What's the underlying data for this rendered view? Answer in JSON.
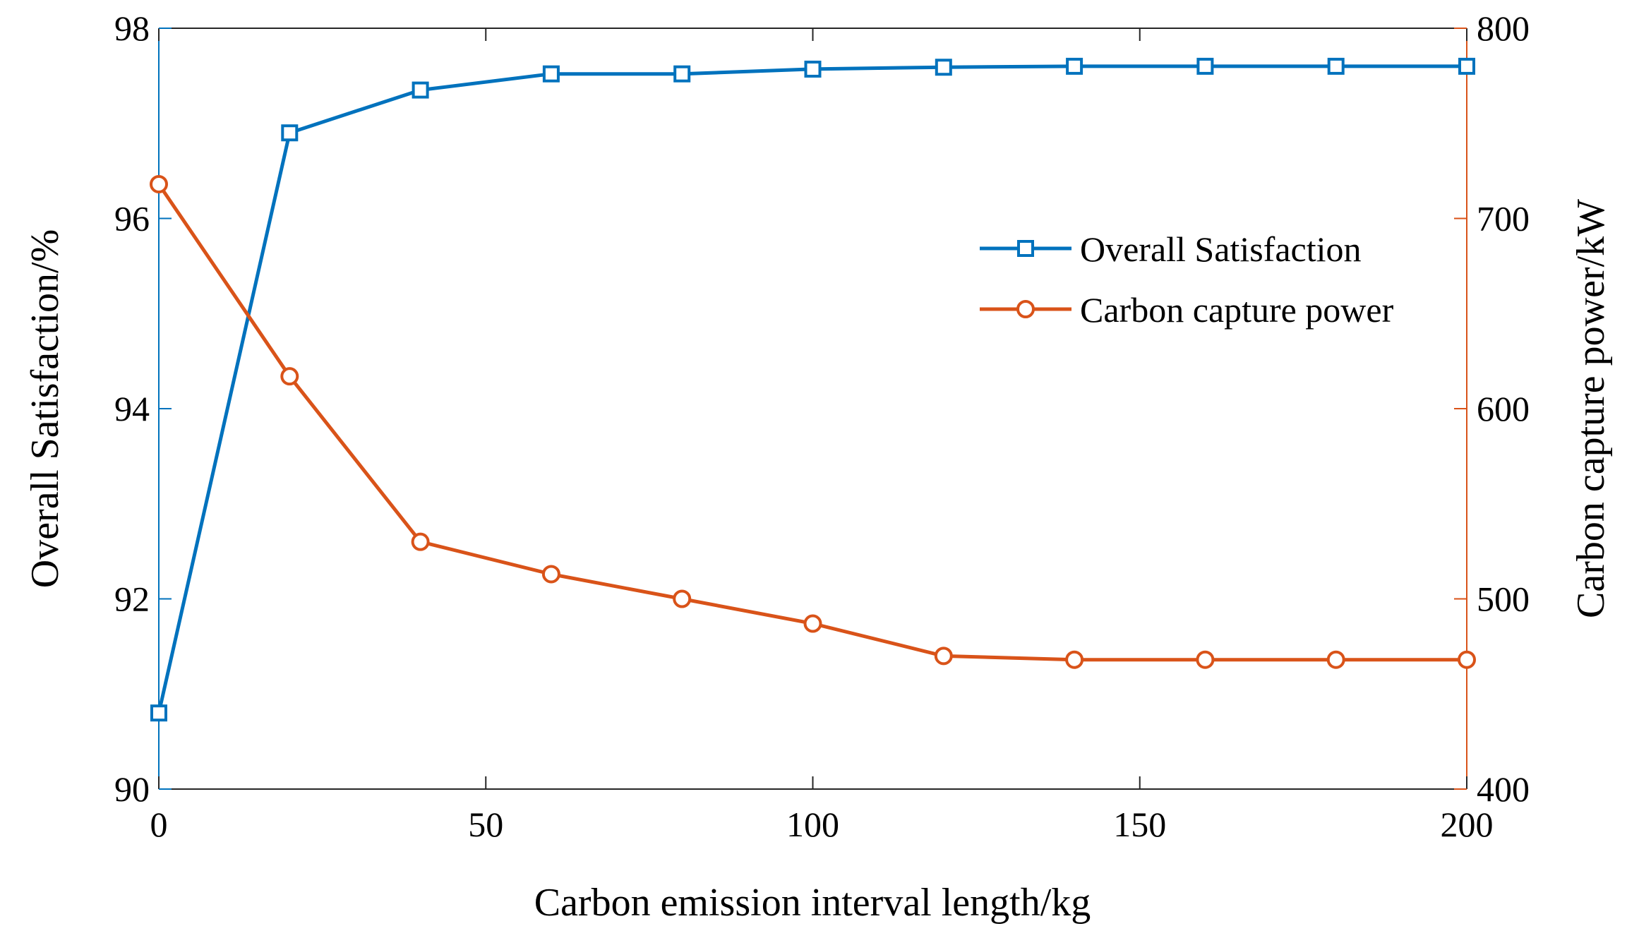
{
  "chart_data": {
    "type": "line",
    "title": "",
    "xlabel": "Carbon emission interval length/kg",
    "ylabel_left": "Overall Satisfaction/%",
    "ylabel_right": "Carbon capture power/kW",
    "xlim": [
      0,
      200
    ],
    "ylim_left": [
      90,
      98
    ],
    "ylim_right": [
      400,
      800
    ],
    "xticks": [
      0,
      50,
      100,
      150,
      200
    ],
    "yticks_left": [
      90,
      92,
      94,
      96,
      98
    ],
    "yticks_right": [
      400,
      500,
      600,
      700,
      800
    ],
    "grid": false,
    "legend_position": "right, upper-middle",
    "x": [
      0,
      20,
      40,
      60,
      80,
      100,
      120,
      140,
      160,
      180,
      200
    ],
    "series": [
      {
        "name": "Overall Satisfaction",
        "axis": "left",
        "color": "#0072BD",
        "marker": "square",
        "values": [
          90.8,
          96.9,
          97.35,
          97.52,
          97.52,
          97.57,
          97.59,
          97.6,
          97.6,
          97.6,
          97.6
        ]
      },
      {
        "name": "Carbon capture power",
        "axis": "right",
        "color": "#D95319",
        "marker": "circle",
        "values": [
          718,
          617,
          530,
          513,
          500,
          487,
          470,
          468,
          468,
          468,
          468
        ]
      }
    ]
  }
}
